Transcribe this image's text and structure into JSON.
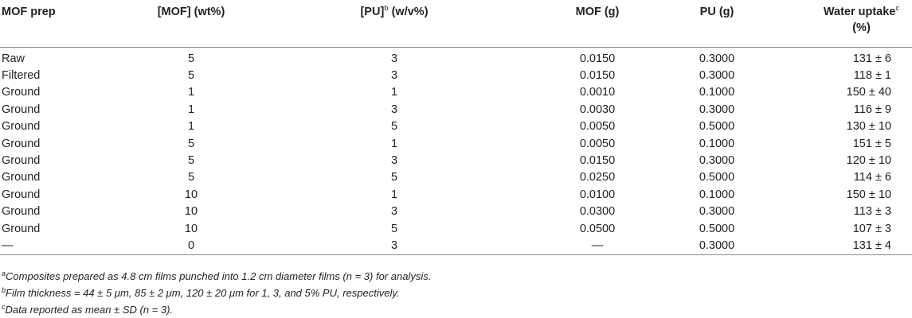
{
  "table": {
    "headers": [
      {
        "text": "MOF prep",
        "sup": ""
      },
      {
        "text": "[MOF] (wt%)",
        "sup": ""
      },
      {
        "text": "[PU]",
        "sup": "b",
        "suffix": " (w/v%)"
      },
      {
        "text": "MOF (g)",
        "sup": ""
      },
      {
        "text": "PU (g)",
        "sup": ""
      },
      {
        "text": "Water uptake",
        "sup": "c",
        "suffix": "(%)"
      }
    ],
    "rows": [
      [
        "Raw",
        "5",
        "3",
        "0.0150",
        "0.3000",
        "131 ± 6"
      ],
      [
        "Filtered",
        "5",
        "3",
        "0.0150",
        "0.3000",
        "118 ± 1"
      ],
      [
        "Ground",
        "1",
        "1",
        "0.0010",
        "0.1000",
        "150 ± 40"
      ],
      [
        "Ground",
        "1",
        "3",
        "0.0030",
        "0.3000",
        "116 ± 9"
      ],
      [
        "Ground",
        "1",
        "5",
        "0.0050",
        "0.5000",
        "130 ± 10"
      ],
      [
        "Ground",
        "5",
        "1",
        "0.0050",
        "0.1000",
        "151 ± 5"
      ],
      [
        "Ground",
        "5",
        "3",
        "0.0150",
        "0.3000",
        "120 ± 10"
      ],
      [
        "Ground",
        "5",
        "5",
        "0.0250",
        "0.5000",
        "114 ± 6"
      ],
      [
        "Ground",
        "10",
        "1",
        "0.0100",
        "0.1000",
        "150 ± 10"
      ],
      [
        "Ground",
        "10",
        "3",
        "0.0300",
        "0.3000",
        "113 ± 3"
      ],
      [
        "Ground",
        "10",
        "5",
        "0.0500",
        "0.5000",
        "107 ± 3"
      ],
      [
        "—",
        "0",
        "3",
        "—",
        "0.3000",
        "131 ± 4"
      ]
    ]
  },
  "footnotes": [
    {
      "marker": "a",
      "text": "Composites prepared as 4.8 cm films punched into 1.2 cm diameter films (n = 3) for analysis."
    },
    {
      "marker": "b",
      "text": "Film thickness = 44 ± 5 μm, 85 ± 2 μm, 120 ± 20 μm for 1, 3, and 5% PU, respectively."
    },
    {
      "marker": "c",
      "text": "Data reported as mean ± SD (n = 3)."
    }
  ]
}
